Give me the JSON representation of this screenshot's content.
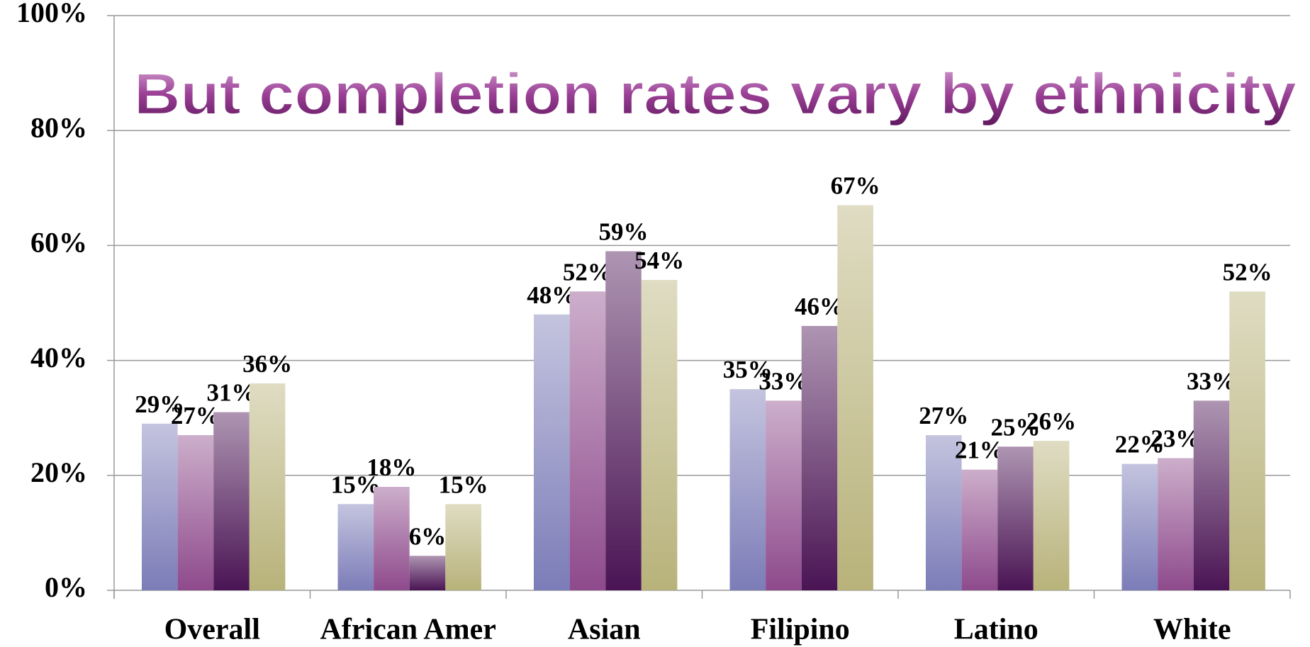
{
  "chart_data": {
    "type": "bar",
    "title": "But completion rates vary by ethnicity",
    "categories": [
      "Overall",
      "African Amer",
      "Asian",
      "Filipino",
      "Latino",
      "White"
    ],
    "series": [
      {
        "color": "#7c7cb8",
        "values": [
          29,
          15,
          48,
          35,
          27,
          22
        ],
        "value_labels": [
          "29%",
          "15%",
          "48%",
          "35%",
          "27%",
          "22%"
        ]
      },
      {
        "color": "#8e4a8c",
        "values": [
          27,
          18,
          52,
          33,
          21,
          23
        ],
        "value_labels": [
          "27%",
          "18%",
          "52%",
          "33%",
          "21%",
          "23%"
        ]
      },
      {
        "color": "#4a1454",
        "values": [
          31,
          6,
          59,
          46,
          25,
          33
        ],
        "value_labels": [
          "31%",
          "6%",
          "59%",
          "46%",
          "25%",
          "33%"
        ]
      },
      {
        "color": "#b8b27a",
        "values": [
          36,
          15,
          54,
          67,
          26,
          52
        ],
        "value_labels": [
          "36%",
          "15%",
          "54%",
          "67%",
          "26%",
          "52%"
        ]
      }
    ],
    "ylim": [
      0,
      100
    ],
    "yticks": [
      {
        "value": 0,
        "label": "0%"
      },
      {
        "value": 20,
        "label": "20%"
      },
      {
        "value": 40,
        "label": "40%"
      },
      {
        "value": 60,
        "label": "60%"
      },
      {
        "value": 80,
        "label": "80%"
      },
      {
        "value": 100,
        "label": "100%"
      }
    ],
    "grid": true
  }
}
